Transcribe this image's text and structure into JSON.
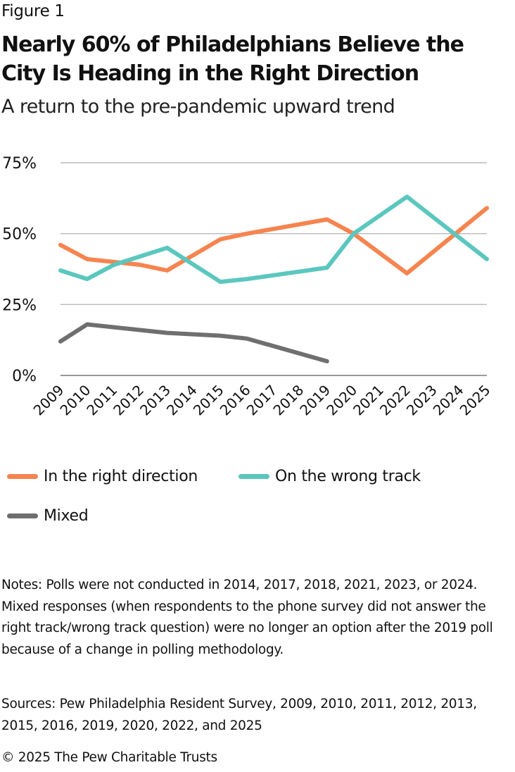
{
  "figure_label": "Figure 1",
  "chart_data": {
    "type": "line",
    "title": "Nearly 60% of Philadelphians Believe the City Is Heading in the Right Direction",
    "subtitle": "A return to the pre-pandemic upward trend",
    "x": [
      "2009",
      "2010",
      "2011",
      "2012",
      "2013",
      "2014",
      "2015",
      "2016",
      "2017",
      "2018",
      "2019",
      "2020",
      "2021",
      "2022",
      "2023",
      "2024",
      "2025"
    ],
    "ylim": [
      0,
      75
    ],
    "yticks": [
      0,
      25,
      50,
      75
    ],
    "ytick_labels": [
      "0%",
      "25%",
      "50%",
      "75%"
    ],
    "grid": true,
    "legend_position": "bottom",
    "series": [
      {
        "name": "In the right direction",
        "color": "#F6844F",
        "points": [
          [
            2009,
            46
          ],
          [
            2010,
            41
          ],
          [
            2011,
            40
          ],
          [
            2012,
            39
          ],
          [
            2013,
            37
          ],
          [
            2015,
            48
          ],
          [
            2016,
            50
          ],
          [
            2019,
            55
          ],
          [
            2020,
            50
          ],
          [
            2022,
            36
          ],
          [
            2025,
            59
          ]
        ]
      },
      {
        "name": "On the wrong track",
        "color": "#5BC7BE",
        "points": [
          [
            2009,
            37
          ],
          [
            2010,
            34
          ],
          [
            2011,
            39
          ],
          [
            2012,
            42
          ],
          [
            2013,
            45
          ],
          [
            2015,
            33
          ],
          [
            2016,
            34
          ],
          [
            2019,
            38
          ],
          [
            2020,
            50
          ],
          [
            2022,
            63
          ],
          [
            2025,
            41
          ]
        ]
      },
      {
        "name": "Mixed",
        "color": "#6F6F6F",
        "points": [
          [
            2009,
            12
          ],
          [
            2010,
            18
          ],
          [
            2013,
            15
          ],
          [
            2015,
            14
          ],
          [
            2016,
            13
          ],
          [
            2019,
            5
          ]
        ]
      }
    ]
  },
  "notes": "Notes: Polls were not conducted in 2014, 2017, 2018, 2021, 2023, or 2024. Mixed responses (when respondents to the phone survey did not answer the right track/wrong track question) were no longer an option after the 2019 poll because of a change in polling methodology.",
  "sources": "Sources: Pew Philadelphia Resident Survey, 2009, 2010, 2011, 2012, 2013, 2015, 2016, 2019, 2020, 2022, and 2025",
  "copyright": "© 2025 The Pew Charitable Trusts"
}
